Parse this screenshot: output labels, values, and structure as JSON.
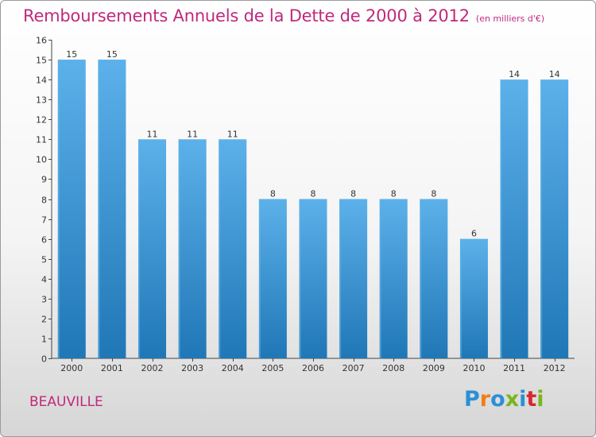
{
  "title": "Remboursements Annuels de la Dette de 2000 à 2012",
  "subtitle": "(en milliers d'€)",
  "commune": "BEAUVILLE",
  "brand": {
    "text": "Proxiti",
    "letter_colors": [
      "#2b8fd6",
      "#f07e18",
      "#2b8fd6",
      "#7ab51d",
      "#2b8fd6",
      "#d6282e",
      "#7ab51d"
    ]
  },
  "colors": {
    "bar": "#3a97d8",
    "bar_light": "#5cb1ea",
    "bar_dark": "#2077b6",
    "title": "#c0297a"
  },
  "chart_data": {
    "type": "bar",
    "categories": [
      "2000",
      "2001",
      "2002",
      "2003",
      "2004",
      "2005",
      "2006",
      "2007",
      "2008",
      "2009",
      "2010",
      "2011",
      "2012"
    ],
    "values": [
      15,
      15,
      11,
      11,
      11,
      8,
      8,
      8,
      8,
      8,
      6,
      14,
      14
    ],
    "title": "Remboursements Annuels de la Dette de 2000 à 2012",
    "xlabel": "",
    "ylabel": "",
    "ylim": [
      0,
      16
    ],
    "yticks": [
      0,
      1,
      2,
      3,
      4,
      5,
      6,
      7,
      8,
      9,
      10,
      11,
      12,
      13,
      14,
      15,
      16
    ],
    "data_labels": true,
    "grid": false,
    "legend": "none"
  }
}
